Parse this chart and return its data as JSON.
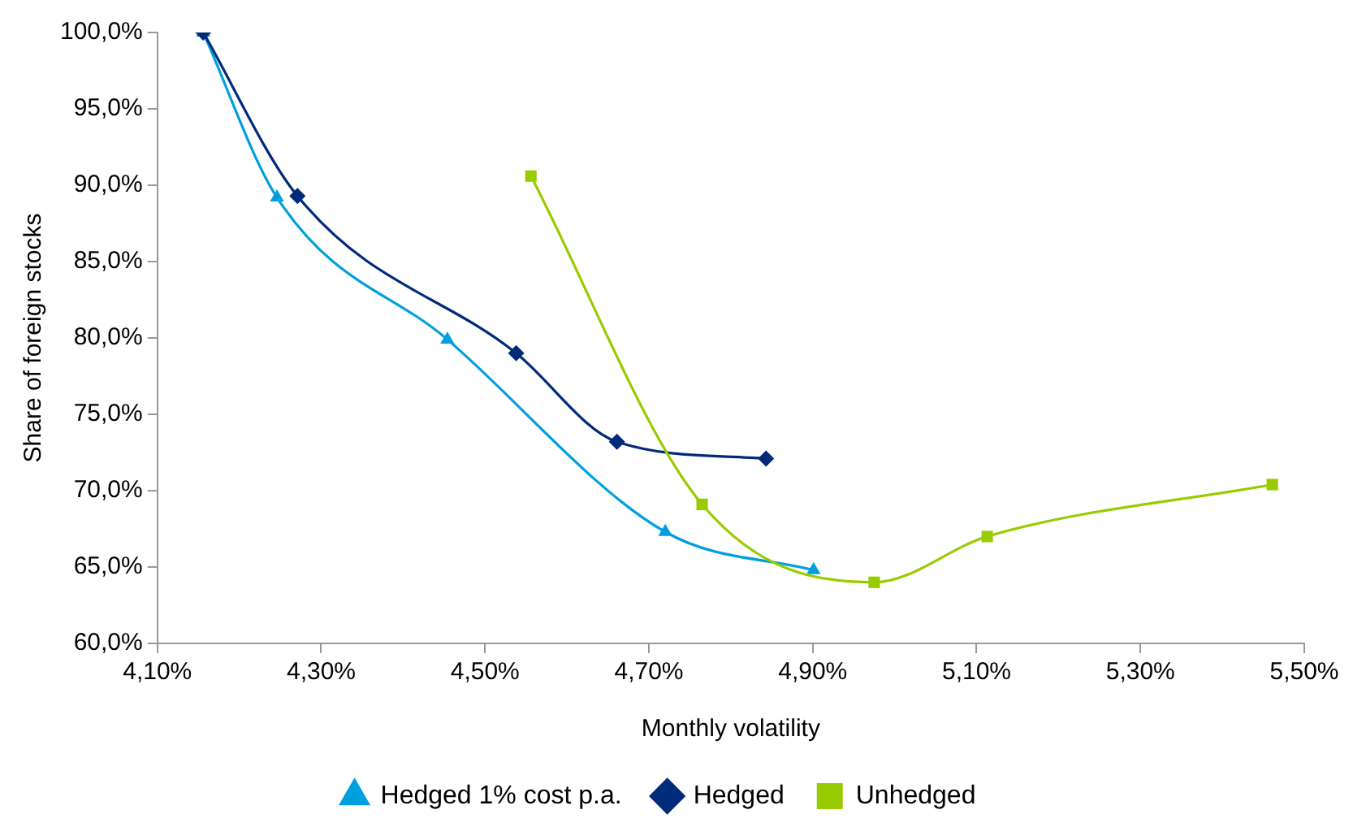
{
  "chart_data": {
    "type": "line",
    "xlabel": "Monthly volatility",
    "ylabel": "Share of foreign stocks",
    "xlim": [
      4.1,
      5.5
    ],
    "xticks": [
      {
        "value": 4.1,
        "label": "4,10%"
      },
      {
        "value": 4.3,
        "label": "4,30%"
      },
      {
        "value": 4.5,
        "label": "4,50%"
      },
      {
        "value": 4.7,
        "label": "4,70%"
      },
      {
        "value": 4.9,
        "label": "4,90%"
      },
      {
        "value": 5.1,
        "label": "5,10%"
      },
      {
        "value": 5.3,
        "label": "5,30%"
      },
      {
        "value": 5.5,
        "label": "5,50%"
      }
    ],
    "ylim": [
      60,
      100
    ],
    "yticks": [
      {
        "value": 60,
        "label": "60,0%"
      },
      {
        "value": 65,
        "label": "65,0%"
      },
      {
        "value": 70,
        "label": "70,0%"
      },
      {
        "value": 75,
        "label": "75,0%"
      },
      {
        "value": 80,
        "label": "80,0%"
      },
      {
        "value": 85,
        "label": "85,0%"
      },
      {
        "value": 90,
        "label": "90,0%"
      },
      {
        "value": 95,
        "label": "95,0%"
      },
      {
        "value": 100,
        "label": "100,0%"
      }
    ],
    "grid": false,
    "legend": "bottom",
    "series": [
      {
        "name": "Hedged 1% cost p.a.",
        "color": "#00a0e0",
        "marker": "triangle",
        "x": [
          4.156,
          4.246,
          4.454,
          4.72,
          4.901
        ],
        "values": [
          100,
          89.2,
          79.9,
          67.3,
          64.8
        ]
      },
      {
        "name": "Hedged",
        "color": "#002a7a",
        "marker": "diamond",
        "x": [
          4.156,
          4.271,
          4.538,
          4.661,
          4.843
        ],
        "values": [
          100,
          89.3,
          79,
          73.2,
          72.1
        ]
      },
      {
        "name": "Unhedged",
        "color": "#99cc00",
        "marker": "square",
        "x": [
          4.556,
          4.765,
          4.975,
          5.113,
          5.461
        ],
        "values": [
          90.6,
          69.1,
          64,
          67,
          70.4
        ]
      }
    ]
  }
}
